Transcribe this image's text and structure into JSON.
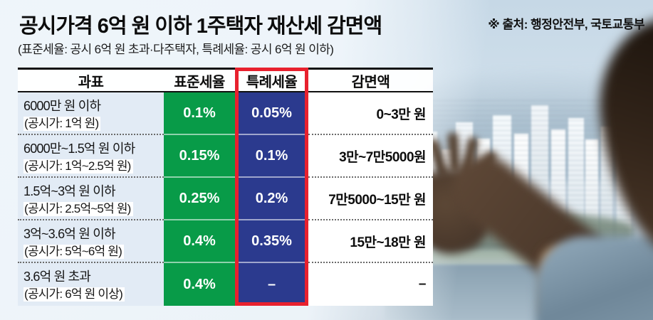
{
  "header": {
    "title": "공시가격 6억 원 이하 1주택자 재산세 감면액",
    "subtitle": "(표준세율: 공시 6억 원 초과·다주택자, 특례세율: 공시 6억 원 이하)",
    "source": "※ 출처: 행정안전부, 국토교통부"
  },
  "colors": {
    "standard_green": "#089b48",
    "special_navy": "#2b3a8e",
    "highlight_red": "#e8212e"
  },
  "chart_data": {
    "type": "table",
    "title": "공시가격 6억 원 이하 1주택자 재산세 감면액",
    "columns": [
      "과표",
      "표준세율",
      "특례세율",
      "감면액"
    ],
    "highlighted_column": "특례세율",
    "rows": [
      {
        "base_range": "6000만 원 이하",
        "base_note": "(공시가: 1억 원)",
        "standard_rate": "0.1%",
        "special_rate": "0.05%",
        "reduction": "0~3만 원"
      },
      {
        "base_range": "6000만~1.5억 원 이하",
        "base_note": "(공시가: 1억~2.5억 원)",
        "standard_rate": "0.15%",
        "special_rate": "0.1%",
        "reduction": "3만~7만5000원"
      },
      {
        "base_range": "1.5억~3억 원 이하",
        "base_note": "(공시가: 2.5억~5억 원)",
        "standard_rate": "0.25%",
        "special_rate": "0.2%",
        "reduction": "7만5000~15만 원"
      },
      {
        "base_range": "3억~3.6억 원 이하",
        "base_note": "(공시가: 5억~6억 원)",
        "standard_rate": "0.4%",
        "special_rate": "0.35%",
        "reduction": "15만~18만 원"
      },
      {
        "base_range": "3.6억 원 초과",
        "base_note": "(공시가: 6억 원 이상)",
        "standard_rate": "0.4%",
        "special_rate": "–",
        "reduction": "–"
      }
    ]
  }
}
